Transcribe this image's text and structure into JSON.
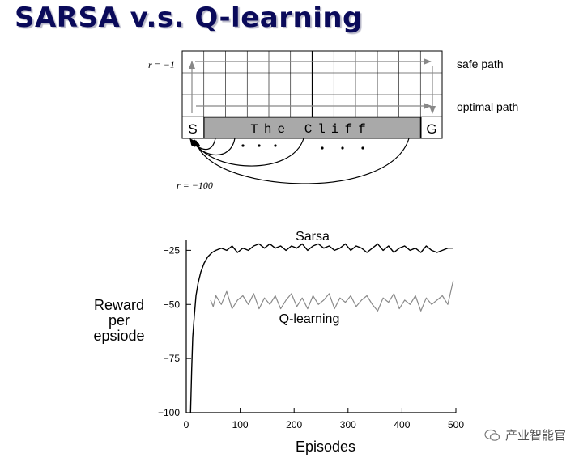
{
  "slide": {
    "title": "SARSA v.s. Q-learning"
  },
  "gridworld": {
    "reward_step_label": "r = −1",
    "reward_cliff_label": "r = −100",
    "start_label": "S",
    "goal_label": "G",
    "cliff_label": "The Cliff",
    "safe_path_label": "safe path",
    "optimal_path_label": "optimal path",
    "columns": 12,
    "rows": 4
  },
  "chart_data": {
    "type": "line",
    "title": "",
    "xlabel": "Episodes",
    "ylabel": [
      "Reward",
      "per",
      "epsiode"
    ],
    "xlim": [
      0,
      500
    ],
    "ylim": [
      -100,
      -20
    ],
    "xticks": [
      0,
      100,
      200,
      300,
      400,
      500
    ],
    "yticks": [
      -25,
      -50,
      -75,
      -100
    ],
    "grid": false,
    "series": [
      {
        "name": "Sarsa",
        "color": "#000000",
        "x": [
          8,
          10,
          12,
          15,
          18,
          22,
          27,
          33,
          40,
          48,
          55,
          65,
          75,
          85,
          95,
          105,
          115,
          125,
          135,
          145,
          155,
          165,
          175,
          185,
          195,
          205,
          215,
          225,
          235,
          245,
          255,
          265,
          275,
          285,
          295,
          305,
          315,
          325,
          335,
          345,
          355,
          365,
          375,
          385,
          395,
          405,
          415,
          425,
          435,
          445,
          455,
          465,
          475,
          485,
          495
        ],
        "values": [
          -100,
          -80,
          -65,
          -55,
          -46,
          -40,
          -35,
          -31,
          -28,
          -26,
          -25,
          -24,
          -25,
          -23,
          -26,
          -24,
          -25,
          -23,
          -22,
          -24,
          -22,
          -24,
          -23,
          -25,
          -23,
          -24,
          -22,
          -25,
          -23,
          -22,
          -24,
          -23,
          -25,
          -24,
          -22,
          -25,
          -23,
          -24,
          -26,
          -24,
          -22,
          -25,
          -23,
          -26,
          -24,
          -23,
          -25,
          -24,
          -26,
          -23,
          -25,
          -26,
          -25,
          -24,
          -24
        ]
      },
      {
        "name": "Q-learning",
        "color": "#8a8a8a",
        "x": [
          45,
          50,
          55,
          65,
          75,
          85,
          95,
          105,
          115,
          125,
          135,
          145,
          155,
          165,
          175,
          185,
          195,
          205,
          215,
          225,
          235,
          245,
          255,
          265,
          275,
          285,
          295,
          305,
          315,
          325,
          335,
          345,
          355,
          365,
          375,
          385,
          395,
          405,
          415,
          425,
          435,
          445,
          455,
          465,
          475,
          485,
          495
        ],
        "values": [
          -48,
          -51,
          -46,
          -50,
          -44,
          -52,
          -48,
          -46,
          -50,
          -45,
          -52,
          -47,
          -50,
          -46,
          -52,
          -48,
          -45,
          -51,
          -47,
          -52,
          -46,
          -50,
          -48,
          -45,
          -52,
          -47,
          -49,
          -46,
          -51,
          -48,
          -46,
          -50,
          -53,
          -47,
          -49,
          -45,
          -52,
          -48,
          -50,
          -46,
          -53,
          -47,
          -50,
          -48,
          -46,
          -50,
          -39
        ]
      }
    ]
  }
}
